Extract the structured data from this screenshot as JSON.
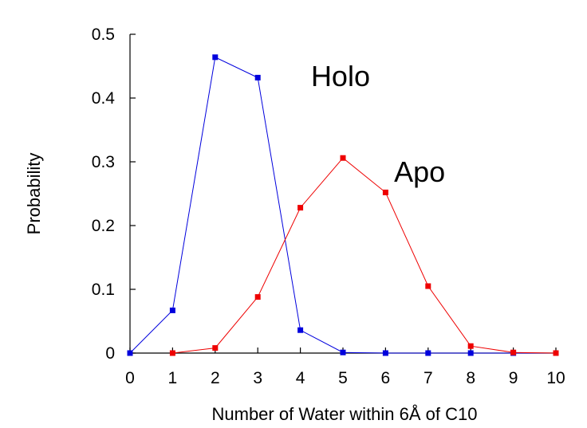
{
  "chart_data": {
    "type": "line",
    "xlabel": "Number of Water within 6Å of C10",
    "ylabel": "Probability",
    "xlim": [
      0,
      10
    ],
    "ylim": [
      0,
      0.5
    ],
    "xticks": [
      0,
      1,
      2,
      3,
      4,
      5,
      6,
      7,
      8,
      9,
      10
    ],
    "yticks": [
      0,
      0.1,
      0.2,
      0.3,
      0.4,
      0.5
    ],
    "ytick_labels": [
      "0",
      "0.1",
      "0.2",
      "0.3",
      "0.4",
      "0.5"
    ],
    "grid": false,
    "legend": "none",
    "series": [
      {
        "name": "Holo",
        "color": "#0000dd",
        "x": [
          0,
          1,
          2,
          3,
          4,
          5,
          6,
          7,
          8,
          9,
          10
        ],
        "values": [
          0.0,
          0.067,
          0.464,
          0.432,
          0.036,
          0.001,
          0.0,
          0.0,
          0.0,
          0.0,
          0.0
        ]
      },
      {
        "name": "Apo",
        "color": "#ee0000",
        "x": [
          1,
          2,
          3,
          4,
          5,
          6,
          7,
          8,
          9,
          10
        ],
        "values": [
          0.0,
          0.008,
          0.088,
          0.228,
          0.306,
          0.252,
          0.105,
          0.011,
          0.001,
          0.0
        ]
      }
    ],
    "annotations": [
      {
        "text": "Holo",
        "x": 4.25,
        "y": 0.435
      },
      {
        "text": "Apo",
        "x": 6.2,
        "y": 0.285
      }
    ]
  }
}
